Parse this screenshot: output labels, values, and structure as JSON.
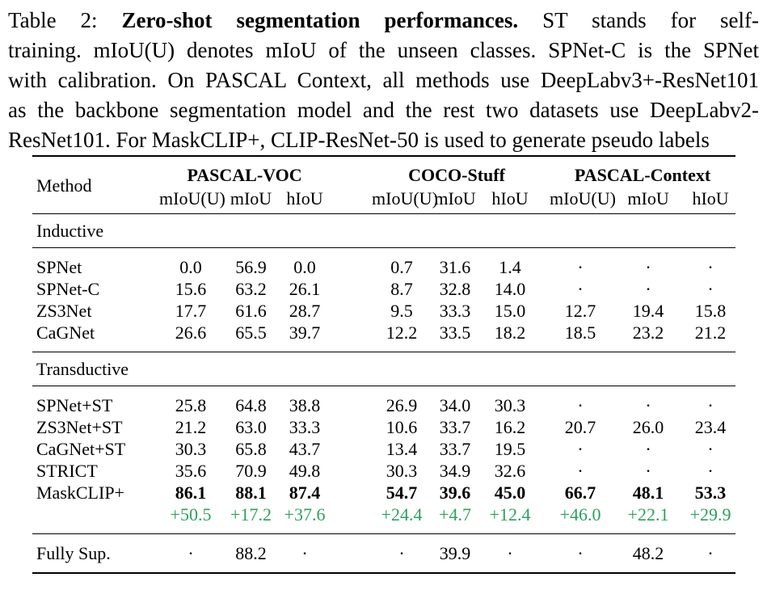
{
  "caption": {
    "lines": [
      {
        "justify": true,
        "segments": [
          {
            "text": "Table 2: ",
            "bold": false
          },
          {
            "text": "Zero-shot segmentation performances.",
            "bold": true
          },
          {
            "text": " ST stands for self-",
            "bold": false
          }
        ]
      },
      {
        "justify": true,
        "segments": [
          {
            "text": "training. mIoU(U) denotes mIoU of the unseen classes. SPNet-C is the SPNet",
            "bold": false
          }
        ]
      },
      {
        "justify": true,
        "segments": [
          {
            "text": "with calibration. On PASCAL Context, all methods use DeepLabv3+-ResNet101",
            "bold": false
          }
        ]
      },
      {
        "justify": true,
        "segments": [
          {
            "text": "as the backbone segmentation model and the rest two datasets use DeepLabv2-",
            "bold": false
          }
        ]
      },
      {
        "justify": false,
        "segments": [
          {
            "text": "ResNet101. For MaskCLIP+, CLIP-ResNet-50 is used to generate pseudo labels",
            "bold": false
          }
        ]
      }
    ]
  },
  "table": {
    "method_header": "Method",
    "groups": [
      {
        "label": "PASCAL-VOC",
        "subcols": [
          "mIoU(U)",
          "mIoU",
          "hIoU"
        ]
      },
      {
        "label": "COCO-Stuff",
        "subcols": [
          "mIoU(U)",
          "mIoU",
          "hIoU"
        ]
      },
      {
        "label": "PASCAL-Context",
        "subcols": [
          "mIoU(U)",
          "mIoU",
          "hIoU"
        ]
      }
    ],
    "sections": [
      {
        "label": "Inductive",
        "rows": [
          {
            "method": "SPNet",
            "style": "normal",
            "cells": [
              "0.0",
              "56.9",
              "0.0",
              "0.7",
              "31.6",
              "1.4",
              "·",
              "·",
              "·"
            ]
          },
          {
            "method": "SPNet-C",
            "style": "normal",
            "cells": [
              "15.6",
              "63.2",
              "26.1",
              "8.7",
              "32.8",
              "14.0",
              "·",
              "·",
              "·"
            ]
          },
          {
            "method": "ZS3Net",
            "style": "normal",
            "cells": [
              "17.7",
              "61.6",
              "28.7",
              "9.5",
              "33.3",
              "15.0",
              "12.7",
              "19.4",
              "15.8"
            ]
          },
          {
            "method": "CaGNet",
            "style": "normal",
            "cells": [
              "26.6",
              "65.5",
              "39.7",
              "12.2",
              "33.5",
              "18.2",
              "18.5",
              "23.2",
              "21.2"
            ]
          }
        ]
      },
      {
        "label": "Transductive",
        "rows": [
          {
            "method": "SPNet+ST",
            "style": "normal",
            "cells": [
              "25.8",
              "64.8",
              "38.8",
              "26.9",
              "34.0",
              "30.3",
              "·",
              "·",
              "·"
            ]
          },
          {
            "method": "ZS3Net+ST",
            "style": "normal",
            "cells": [
              "21.2",
              "63.0",
              "33.3",
              "10.6",
              "33.7",
              "16.2",
              "20.7",
              "26.0",
              "23.4"
            ]
          },
          {
            "method": "CaGNet+ST",
            "style": "normal",
            "cells": [
              "30.3",
              "65.8",
              "43.7",
              "13.4",
              "33.7",
              "19.5",
              "·",
              "·",
              "·"
            ]
          },
          {
            "method": "STRICT",
            "style": "normal",
            "cells": [
              "35.6",
              "70.9",
              "49.8",
              "30.3",
              "34.9",
              "32.6",
              "·",
              "·",
              "·"
            ]
          },
          {
            "method": "MaskCLIP+",
            "style": "bold",
            "cells": [
              "86.1",
              "88.1",
              "87.4",
              "54.7",
              "39.6",
              "45.0",
              "66.7",
              "48.1",
              "53.3"
            ]
          },
          {
            "method": "",
            "style": "delta",
            "cells": [
              "+50.5",
              "+17.2",
              "+37.6",
              "+24.4",
              "+4.7",
              "+12.4",
              "+46.0",
              "+22.1",
              "+29.9"
            ]
          }
        ]
      },
      {
        "label": null,
        "last": true,
        "rows": [
          {
            "method": "Fully Sup.",
            "style": "normal",
            "cells": [
              "·",
              "88.2",
              "·",
              "·",
              "39.9",
              "·",
              "·",
              "48.2",
              "·"
            ]
          }
        ]
      }
    ]
  },
  "colors": {
    "delta_green": "#2da05f",
    "text": "#000000",
    "rule": "#000000",
    "background": "#ffffff"
  }
}
